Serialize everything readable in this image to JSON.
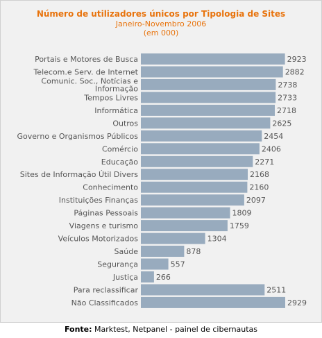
{
  "chart_data": {
    "type": "bar",
    "orientation": "horizontal",
    "title": "Número de utilizadores únicos por Tipologia de Sites",
    "subtitle_lines": [
      "Janeiro-Novembro 2006",
      "(em 000)"
    ],
    "categories": [
      "Portais e Motores de Busca",
      "Telecom.e Serv. de Internet",
      [
        "Comunic. Soc., Notícias e",
        "Informação"
      ],
      "Tempos Livres",
      "Informática",
      "Outros",
      "Governo e Organismos Públicos",
      "Comércio",
      "Educação",
      "Sites de Informação Útil Divers",
      "Conhecimento",
      "Instituições Finanças",
      "Páginas Pessoais",
      "Viagens e turismo",
      "Veículos Motorizados",
      "Saúde",
      "Segurança",
      "Justiça",
      "Para reclassificar",
      "Não Classificados"
    ],
    "values": [
      2923,
      2882,
      2738,
      2733,
      2718,
      2625,
      2454,
      2406,
      2271,
      2168,
      2160,
      2097,
      1809,
      1759,
      1304,
      878,
      557,
      266,
      2511,
      2929
    ],
    "xlim": [
      0,
      2929
    ],
    "grid": false,
    "colors": {
      "bar": "#98abbe",
      "title": "#e8730c"
    }
  },
  "source": {
    "label": "Fonte:",
    "text": "Marktest, Netpanel - painel de cibernautas"
  }
}
